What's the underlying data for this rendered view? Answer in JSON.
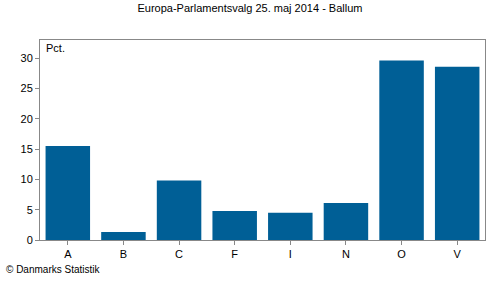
{
  "chart_data": {
    "type": "bar",
    "title": "Europa-Parlamentsvalg 25. maj 2014 - Ballum",
    "ylabel": "Pct.",
    "categories": [
      "A",
      "B",
      "C",
      "F",
      "I",
      "N",
      "O",
      "V"
    ],
    "values": [
      15.5,
      1.3,
      9.8,
      4.8,
      4.5,
      6.1,
      29.6,
      28.6
    ],
    "color": "#005f96",
    "ylim": [
      0,
      33
    ],
    "yticks": [
      0,
      5,
      10,
      15,
      20,
      25,
      30
    ],
    "grid": false,
    "annotations": [
      "© Danmarks Statistik"
    ]
  }
}
